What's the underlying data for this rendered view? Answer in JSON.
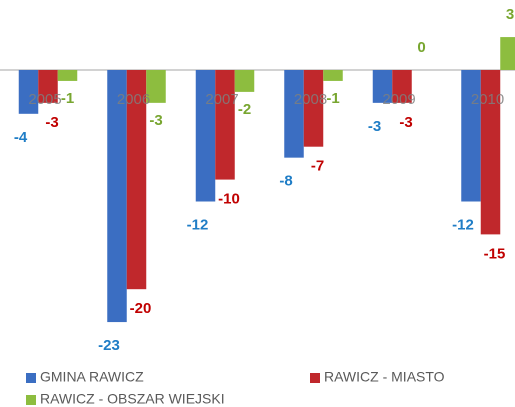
{
  "chart_data": {
    "type": "bar",
    "categories": [
      "2005",
      "2006",
      "2007",
      "2008",
      "2009",
      "2010"
    ],
    "series": [
      {
        "name": "GMINA RAWICZ",
        "color": "#3b6ec2",
        "label_color": "#1f7dc6",
        "values": [
          -4,
          -23,
          -12,
          -8,
          -3,
          -12
        ]
      },
      {
        "name": "RAWICZ - MIASTO",
        "color": "#c0282c",
        "label_color": "#c00000",
        "values": [
          -3,
          -20,
          -10,
          -7,
          -3,
          -15
        ]
      },
      {
        "name": "RAWICZ - OBSZAR WIEJSKI",
        "color": "#8dbd3f",
        "label_color": "#78a630",
        "values": [
          -1,
          -3,
          -2,
          -1,
          0,
          3
        ]
      }
    ],
    "ylim": [
      -25,
      6
    ]
  }
}
